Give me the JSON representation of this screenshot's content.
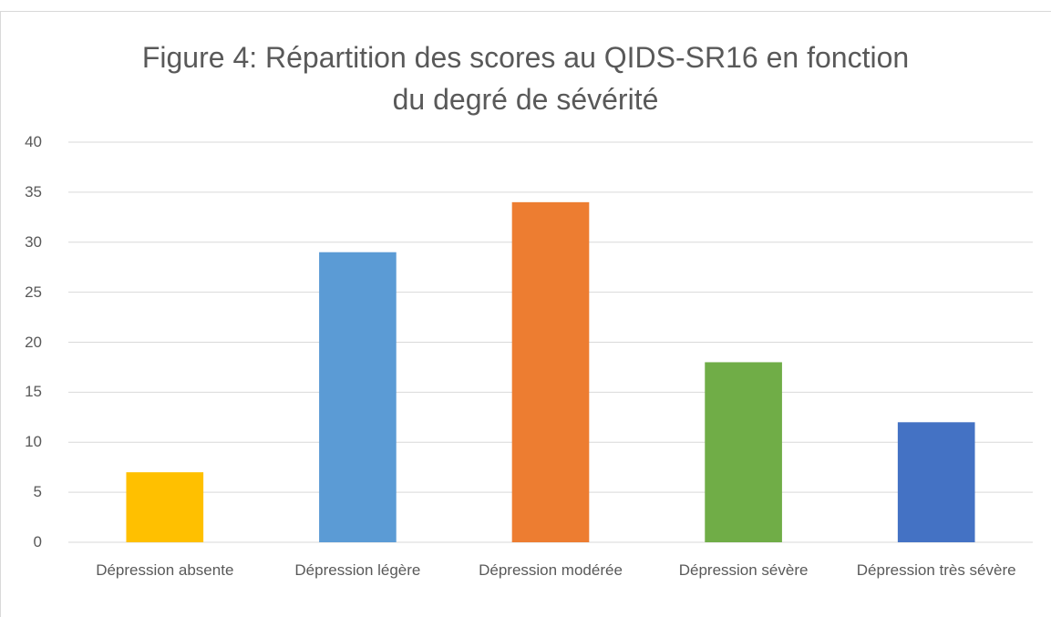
{
  "chart_data": {
    "type": "bar",
    "title": "Figure 4: Répartition des scores au QIDS-SR16 en fonction\ndu degré de sévérité",
    "categories": [
      "Dépression absente",
      "Dépression légère",
      "Dépression modérée",
      "Dépression sévère",
      "Dépression très sévère"
    ],
    "values": [
      7,
      29,
      34,
      18,
      12
    ],
    "colors": [
      "#ffc000",
      "#5b9bd5",
      "#ed7d31",
      "#70ad47",
      "#4472c4"
    ],
    "ylim": [
      0,
      40
    ],
    "yticks": [
      0,
      5,
      10,
      15,
      20,
      25,
      30,
      35,
      40
    ],
    "grid": true
  }
}
